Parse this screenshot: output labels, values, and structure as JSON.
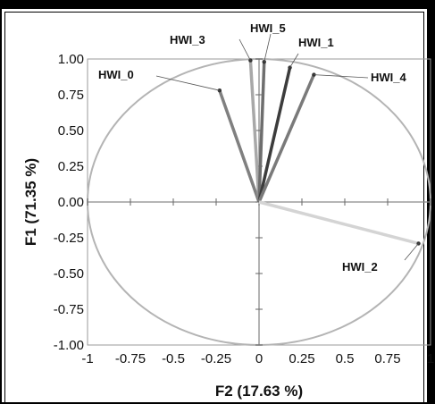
{
  "chart_data": {
    "type": "scatter",
    "subtype": "correlation-circle",
    "xlabel": "F2 (17.63 %)",
    "ylabel": "F1 (71.35 %)",
    "xlim": [
      -1,
      1
    ],
    "ylim": [
      -1,
      1
    ],
    "x_ticks": [
      "-1",
      "-0.75",
      "-0.5",
      "-0.25",
      "0",
      "0.25",
      "0.5",
      "0.75",
      "1"
    ],
    "y_ticks": [
      "1.00",
      "0.75",
      "0.50",
      "0.25",
      "0.00",
      "-0.25",
      "-0.50",
      "-0.75",
      "-1.00"
    ],
    "grid": false,
    "unit_circle": true,
    "vectors": [
      {
        "name": "HWI_0",
        "x": -0.23,
        "y": 0.78,
        "color": "#808080"
      },
      {
        "name": "HWI_3",
        "x": -0.05,
        "y": 0.99,
        "color": "#a8a8a8"
      },
      {
        "name": "HWI_5",
        "x": 0.03,
        "y": 0.98,
        "color": "#6e6e6e"
      },
      {
        "name": "HWI_1",
        "x": 0.18,
        "y": 0.94,
        "color": "#3c3c3c"
      },
      {
        "name": "HWI_4",
        "x": 0.32,
        "y": 0.89,
        "color": "#7a7a7a"
      },
      {
        "name": "HWI_2",
        "x": 0.93,
        "y": -0.29,
        "color": "#d4d4d4"
      }
    ]
  }
}
